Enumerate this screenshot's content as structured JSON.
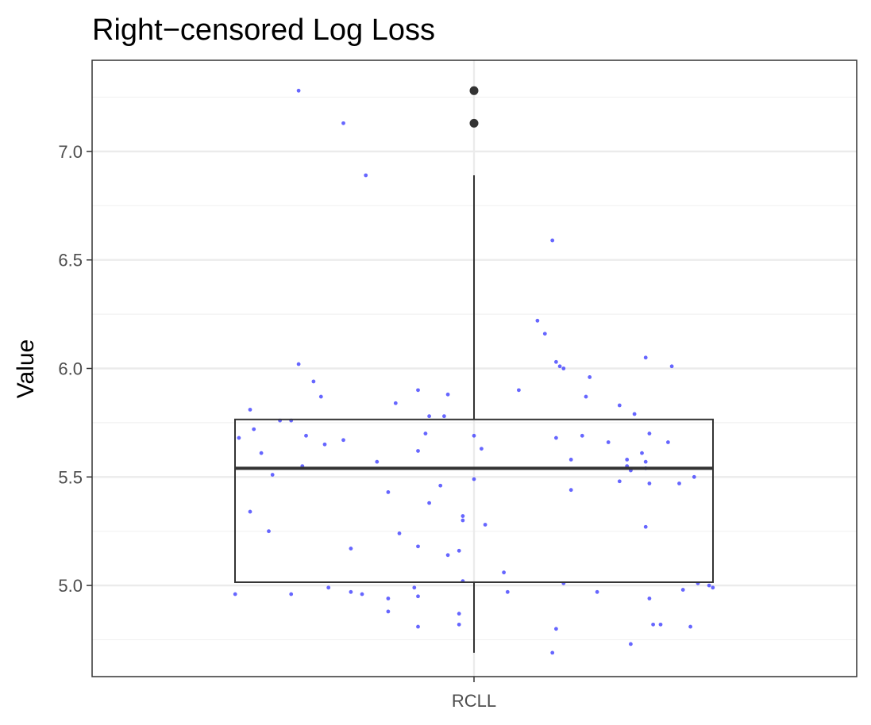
{
  "chart_data": {
    "type": "boxplot",
    "title": "Right−censored Log Loss",
    "xlabel": "",
    "ylabel": "Value",
    "categories": [
      "RCLL"
    ],
    "ylim": [
      4.58,
      7.42
    ],
    "yticks": [
      5.0,
      5.5,
      6.0,
      6.5,
      7.0
    ],
    "ytick_labels": [
      "5.0",
      "5.5",
      "6.0",
      "6.5",
      "7.0"
    ],
    "grid": true,
    "legend": "none",
    "box": {
      "category": "RCLL",
      "q1": 5.015,
      "median": 5.54,
      "q3": 5.765,
      "whisker_low": 4.69,
      "whisker_high": 6.89,
      "outliers": [
        7.28,
        7.13
      ]
    },
    "points": [
      {
        "x": -0.64,
        "y": 4.96
      },
      {
        "x": -0.63,
        "y": 5.68
      },
      {
        "x": -0.6,
        "y": 5.81
      },
      {
        "x": -0.6,
        "y": 5.34
      },
      {
        "x": -0.59,
        "y": 5.72
      },
      {
        "x": -0.57,
        "y": 5.61
      },
      {
        "x": -0.55,
        "y": 5.25
      },
      {
        "x": -0.54,
        "y": 5.51
      },
      {
        "x": -0.52,
        "y": 5.76
      },
      {
        "x": -0.49,
        "y": 5.76
      },
      {
        "x": -0.49,
        "y": 4.96
      },
      {
        "x": -0.47,
        "y": 7.28
      },
      {
        "x": -0.47,
        "y": 6.02
      },
      {
        "x": -0.46,
        "y": 5.55
      },
      {
        "x": -0.45,
        "y": 5.69
      },
      {
        "x": -0.43,
        "y": 5.94
      },
      {
        "x": -0.41,
        "y": 5.87
      },
      {
        "x": -0.4,
        "y": 5.65
      },
      {
        "x": -0.39,
        "y": 4.99
      },
      {
        "x": -0.35,
        "y": 7.13
      },
      {
        "x": -0.35,
        "y": 5.67
      },
      {
        "x": -0.33,
        "y": 5.17
      },
      {
        "x": -0.33,
        "y": 4.97
      },
      {
        "x": -0.3,
        "y": 4.96
      },
      {
        "x": -0.29,
        "y": 6.89
      },
      {
        "x": -0.26,
        "y": 5.57
      },
      {
        "x": -0.23,
        "y": 5.43
      },
      {
        "x": -0.23,
        "y": 4.94
      },
      {
        "x": -0.23,
        "y": 4.88
      },
      {
        "x": -0.21,
        "y": 5.84
      },
      {
        "x": -0.2,
        "y": 5.24
      },
      {
        "x": -0.16,
        "y": 4.99
      },
      {
        "x": -0.15,
        "y": 5.9
      },
      {
        "x": -0.15,
        "y": 5.62
      },
      {
        "x": -0.15,
        "y": 5.18
      },
      {
        "x": -0.15,
        "y": 4.95
      },
      {
        "x": -0.15,
        "y": 4.81
      },
      {
        "x": -0.13,
        "y": 5.7
      },
      {
        "x": -0.12,
        "y": 5.78
      },
      {
        "x": -0.12,
        "y": 5.38
      },
      {
        "x": -0.09,
        "y": 5.46
      },
      {
        "x": -0.08,
        "y": 5.78
      },
      {
        "x": -0.07,
        "y": 5.88
      },
      {
        "x": -0.07,
        "y": 5.14
      },
      {
        "x": -0.04,
        "y": 5.16
      },
      {
        "x": -0.04,
        "y": 4.87
      },
      {
        "x": -0.04,
        "y": 4.82
      },
      {
        "x": -0.03,
        "y": 5.3
      },
      {
        "x": -0.03,
        "y": 5.32
      },
      {
        "x": -0.03,
        "y": 5.02
      },
      {
        "x": 0.0,
        "y": 5.69
      },
      {
        "x": 0.0,
        "y": 5.49
      },
      {
        "x": 0.02,
        "y": 5.63
      },
      {
        "x": 0.03,
        "y": 5.28
      },
      {
        "x": 0.08,
        "y": 5.06
      },
      {
        "x": 0.12,
        "y": 5.9
      },
      {
        "x": 0.09,
        "y": 4.97
      },
      {
        "x": 0.17,
        "y": 6.22
      },
      {
        "x": 0.19,
        "y": 6.16
      },
      {
        "x": 0.21,
        "y": 6.59
      },
      {
        "x": 0.22,
        "y": 6.03
      },
      {
        "x": 0.22,
        "y": 5.68
      },
      {
        "x": 0.22,
        "y": 4.8
      },
      {
        "x": 0.23,
        "y": 6.01
      },
      {
        "x": 0.24,
        "y": 6.0
      },
      {
        "x": 0.24,
        "y": 5.01
      },
      {
        "x": 0.21,
        "y": 4.69
      },
      {
        "x": 0.26,
        "y": 5.58
      },
      {
        "x": 0.26,
        "y": 5.44
      },
      {
        "x": 0.29,
        "y": 5.69
      },
      {
        "x": 0.3,
        "y": 5.87
      },
      {
        "x": 0.31,
        "y": 5.96
      },
      {
        "x": 0.36,
        "y": 5.66
      },
      {
        "x": 0.33,
        "y": 4.97
      },
      {
        "x": 0.39,
        "y": 5.83
      },
      {
        "x": 0.39,
        "y": 5.48
      },
      {
        "x": 0.41,
        "y": 5.58
      },
      {
        "x": 0.41,
        "y": 5.55
      },
      {
        "x": 0.42,
        "y": 5.53
      },
      {
        "x": 0.43,
        "y": 5.79
      },
      {
        "x": 0.42,
        "y": 4.73
      },
      {
        "x": 0.45,
        "y": 5.61
      },
      {
        "x": 0.46,
        "y": 5.57
      },
      {
        "x": 0.46,
        "y": 5.54
      },
      {
        "x": 0.46,
        "y": 5.27
      },
      {
        "x": 0.46,
        "y": 6.05
      },
      {
        "x": 0.47,
        "y": 5.7
      },
      {
        "x": 0.47,
        "y": 4.94
      },
      {
        "x": 0.48,
        "y": 4.82
      },
      {
        "x": 0.47,
        "y": 5.47
      },
      {
        "x": 0.5,
        "y": 4.82
      },
      {
        "x": 0.52,
        "y": 5.66
      },
      {
        "x": 0.53,
        "y": 6.01
      },
      {
        "x": 0.55,
        "y": 5.47
      },
      {
        "x": 0.56,
        "y": 4.98
      },
      {
        "x": 0.58,
        "y": 4.81
      },
      {
        "x": 0.59,
        "y": 5.5
      },
      {
        "x": 0.6,
        "y": 5.01
      },
      {
        "x": 0.63,
        "y": 5.0
      },
      {
        "x": 0.64,
        "y": 4.99
      }
    ],
    "colors": {
      "point": "#3333ff",
      "box_line": "#333333",
      "outlier": "#333333",
      "grid_major": "#ebebeb",
      "grid_minor": "#f2f2f2",
      "panel_border": "#333333",
      "background": "#ffffff"
    }
  }
}
